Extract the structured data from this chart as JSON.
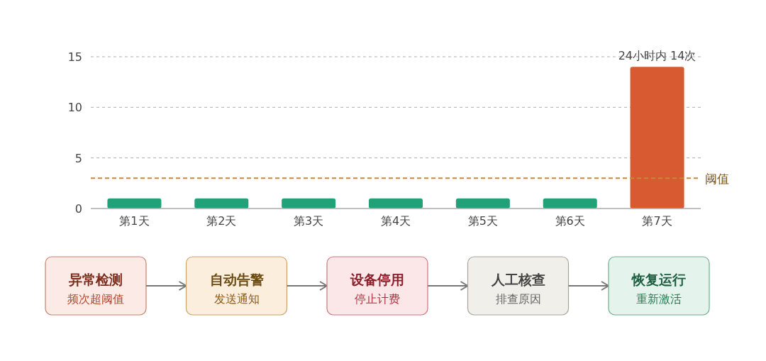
{
  "chart_data": {
    "type": "bar",
    "categories": [
      "第1天",
      "第2天",
      "第3天",
      "第4天",
      "第5天",
      "第6天",
      "第7天"
    ],
    "values": [
      1,
      1,
      1,
      1,
      1,
      1,
      14
    ],
    "colors": [
      "#22a078",
      "#22a078",
      "#22a078",
      "#22a078",
      "#22a078",
      "#22a078",
      "#d85a30"
    ],
    "ylim": [
      0,
      15
    ],
    "yticks": [
      0,
      5,
      10,
      15
    ],
    "grid": "y",
    "ref_lines": [
      {
        "axis": "y",
        "value": 3,
        "label": "阈值",
        "color": "#c8883a",
        "line_style": "dashed"
      }
    ],
    "annotations": [
      {
        "text": "24小时内 14次",
        "x": "第7天",
        "y": 14
      },
      "异常检测",
      "频次超阈值",
      "自动告警",
      "发送通知",
      "设备停用",
      "停止计费",
      "人工核查",
      "排查原因",
      "恢复运行",
      "重新激活"
    ]
  }
}
